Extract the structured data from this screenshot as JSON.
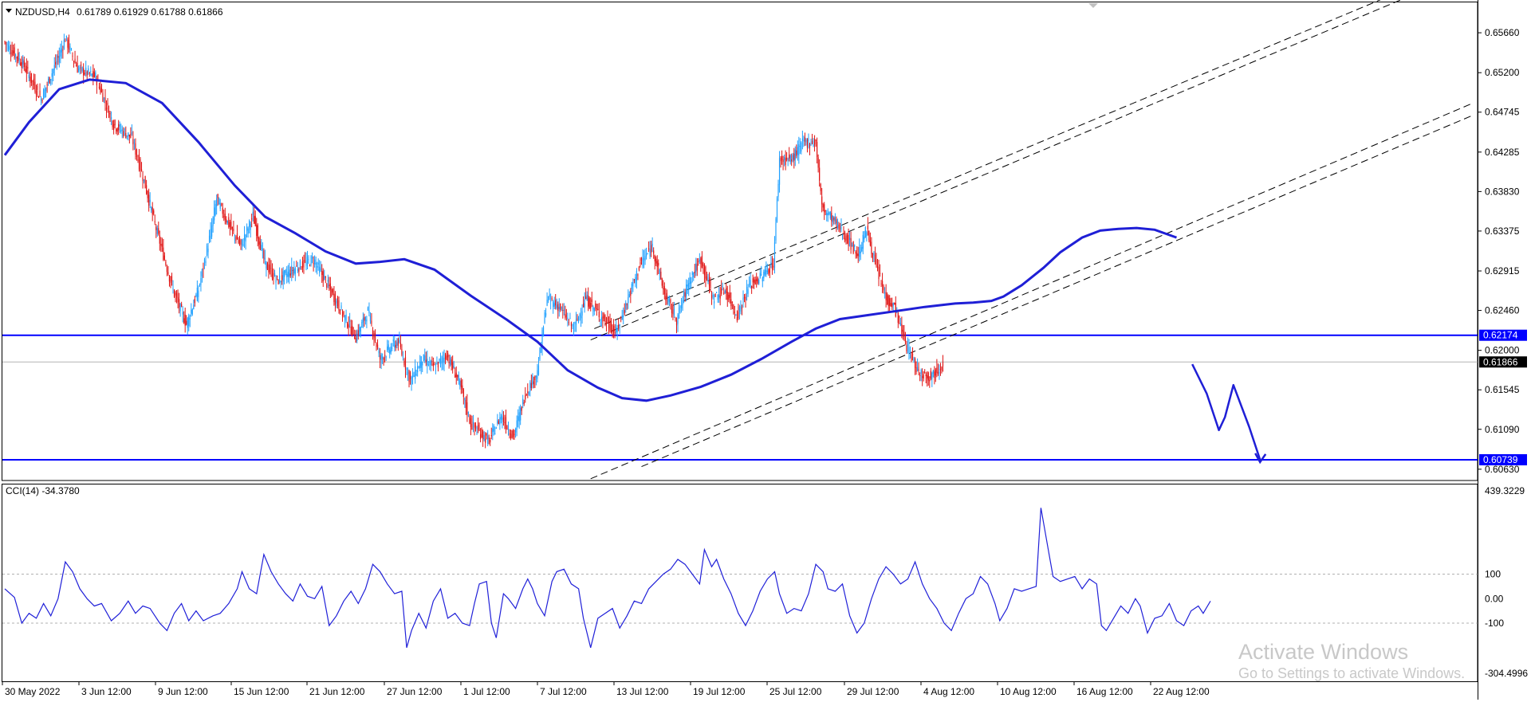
{
  "header": {
    "symbol_label": "NZDUSD,H4",
    "ohlc_text": "0.61789 0.61929 0.61788 0.61866"
  },
  "colors": {
    "bull": "#1ea0ff",
    "bear": "#e01414",
    "ma": "#1f1fd6",
    "level": "#0000ff",
    "grid": "#c8c8c8",
    "cci": "#2020d8"
  },
  "chart_data": [
    {
      "type": "candlestick",
      "title": "NZDUSD,H4",
      "timeframe": "H4",
      "last_ohlc": {
        "open": 0.61789,
        "high": 0.61929,
        "low": 0.61788,
        "close": 0.61866
      },
      "y_axis": {
        "ticks": [
          "0.65660",
          "0.65200",
          "0.64745",
          "0.64285",
          "0.63830",
          "0.63375",
          "0.62915",
          "0.62460",
          "0.62000",
          "0.61545",
          "0.61090",
          "0.60630"
        ],
        "ylim": [
          0.605,
          0.6601
        ]
      },
      "x_axis": {
        "ticks": [
          "30 May 2022",
          "3 Jun 12:00",
          "9 Jun 12:00",
          "15 Jun 12:00",
          "21 Jun 12:00",
          "27 Jun 12:00",
          "1 Jul 12:00",
          "7 Jul 12:00",
          "13 Jul 12:00",
          "19 Jul 12:00",
          "25 Jul 12:00",
          "29 Jul 12:00",
          "4 Aug 12:00",
          "10 Aug 12:00",
          "16 Aug 12:00",
          "22 Aug 12:00"
        ]
      },
      "horizontal_levels": [
        {
          "label": "0.62174",
          "value": 0.62174
        },
        {
          "label": "0.60739",
          "value": 0.60739
        }
      ],
      "current_price": {
        "label": "0.61866",
        "value": 0.61866
      },
      "moving_average_path": [
        [
          0,
          0.6425
        ],
        [
          20,
          0.6463
        ],
        [
          45,
          0.6501
        ],
        [
          70,
          0.6512
        ],
        [
          100,
          0.6508
        ],
        [
          130,
          0.6485
        ],
        [
          160,
          0.644
        ],
        [
          190,
          0.639
        ],
        [
          215,
          0.6354
        ],
        [
          240,
          0.6335
        ],
        [
          265,
          0.6314
        ],
        [
          290,
          0.63
        ],
        [
          310,
          0.6302
        ],
        [
          330,
          0.6305
        ],
        [
          355,
          0.6293
        ],
        [
          385,
          0.6263
        ],
        [
          415,
          0.6235
        ],
        [
          440,
          0.621
        ],
        [
          465,
          0.6177
        ],
        [
          490,
          0.6157
        ],
        [
          510,
          0.6145
        ],
        [
          530,
          0.6142
        ],
        [
          550,
          0.6148
        ],
        [
          575,
          0.6158
        ],
        [
          600,
          0.6172
        ],
        [
          625,
          0.619
        ],
        [
          650,
          0.621
        ],
        [
          670,
          0.6225
        ],
        [
          690,
          0.6236
        ],
        [
          710,
          0.624
        ],
        [
          735,
          0.6245
        ],
        [
          760,
          0.625
        ],
        [
          785,
          0.6254
        ],
        [
          800,
          0.6255
        ],
        [
          815,
          0.6257
        ],
        [
          825,
          0.6262
        ],
        [
          840,
          0.6275
        ],
        [
          858,
          0.6295
        ],
        [
          872,
          0.6313
        ],
        [
          890,
          0.633
        ],
        [
          905,
          0.6338
        ],
        [
          920,
          0.634
        ],
        [
          935,
          0.6341
        ],
        [
          950,
          0.6339
        ],
        [
          968,
          0.633
        ]
      ],
      "channel_lines": [
        {
          "from": [
            487,
            0.6225
          ],
          "to": [
            1145,
            0.6609
          ]
        },
        {
          "from": [
            484,
            0.6212
          ],
          "to": [
            1162,
            0.6609
          ]
        },
        {
          "from": [
            484,
            0.6052
          ],
          "to": [
            1213,
            0.6485
          ]
        },
        {
          "from": [
            526,
            0.6066
          ],
          "to": [
            1213,
            0.6471
          ]
        }
      ],
      "projection_path": [
        [
          981,
          0.6184
        ],
        [
          993,
          0.615
        ],
        [
          1003,
          0.6108
        ],
        [
          1008,
          0.6123
        ],
        [
          1015,
          0.616
        ],
        [
          1028,
          0.6112
        ],
        [
          1037,
          0.6074
        ]
      ],
      "bars_visible": 970
    },
    {
      "type": "line",
      "title": "CCI(14) -34.3780",
      "indicator": "CCI",
      "period": 14,
      "current_value": -34.378,
      "y_axis": {
        "ticks": [
          "439.3229",
          "100",
          "0.00",
          "-100",
          "-304.4996"
        ],
        "ylim": [
          -304.4996,
          439.3229
        ]
      },
      "reference_levels": [
        100,
        -100
      ],
      "values_path": [
        [
          0,
          40
        ],
        [
          8,
          5
        ],
        [
          14,
          -100
        ],
        [
          20,
          -60
        ],
        [
          26,
          -80
        ],
        [
          32,
          -20
        ],
        [
          38,
          -70
        ],
        [
          44,
          0
        ],
        [
          50,
          150
        ],
        [
          56,
          110
        ],
        [
          62,
          40
        ],
        [
          68,
          0
        ],
        [
          74,
          -30
        ],
        [
          80,
          -20
        ],
        [
          88,
          -90
        ],
        [
          95,
          -60
        ],
        [
          102,
          -10
        ],
        [
          108,
          -60
        ],
        [
          114,
          -30
        ],
        [
          120,
          -40
        ],
        [
          128,
          -100
        ],
        [
          134,
          -130
        ],
        [
          140,
          -60
        ],
        [
          146,
          -20
        ],
        [
          152,
          -90
        ],
        [
          158,
          -50
        ],
        [
          164,
          -90
        ],
        [
          172,
          -70
        ],
        [
          178,
          -60
        ],
        [
          185,
          -20
        ],
        [
          192,
          40
        ],
        [
          196,
          110
        ],
        [
          202,
          40
        ],
        [
          208,
          20
        ],
        [
          214,
          180
        ],
        [
          220,
          110
        ],
        [
          226,
          60
        ],
        [
          232,
          20
        ],
        [
          238,
          -10
        ],
        [
          244,
          60
        ],
        [
          250,
          10
        ],
        [
          256,
          0
        ],
        [
          262,
          50
        ],
        [
          268,
          -110
        ],
        [
          274,
          -70
        ],
        [
          280,
          -10
        ],
        [
          286,
          30
        ],
        [
          292,
          -20
        ],
        [
          298,
          40
        ],
        [
          304,
          140
        ],
        [
          310,
          110
        ],
        [
          316,
          60
        ],
        [
          322,
          20
        ],
        [
          328,
          30
        ],
        [
          332,
          -200
        ],
        [
          336,
          -130
        ],
        [
          342,
          -60
        ],
        [
          348,
          -120
        ],
        [
          354,
          -10
        ],
        [
          360,
          40
        ],
        [
          366,
          -80
        ],
        [
          372,
          -60
        ],
        [
          378,
          -100
        ],
        [
          384,
          -110
        ],
        [
          388,
          -20
        ],
        [
          392,
          60
        ],
        [
          398,
          70
        ],
        [
          402,
          -100
        ],
        [
          406,
          -160
        ],
        [
          412,
          20
        ],
        [
          416,
          0
        ],
        [
          422,
          -40
        ],
        [
          428,
          40
        ],
        [
          432,
          80
        ],
        [
          436,
          40
        ],
        [
          440,
          -20
        ],
        [
          446,
          -70
        ],
        [
          452,
          70
        ],
        [
          456,
          110
        ],
        [
          462,
          120
        ],
        [
          468,
          60
        ],
        [
          474,
          40
        ],
        [
          478,
          -80
        ],
        [
          484,
          -200
        ],
        [
          490,
          -80
        ],
        [
          496,
          -60
        ],
        [
          502,
          -40
        ],
        [
          508,
          -120
        ],
        [
          514,
          -70
        ],
        [
          520,
          -10
        ],
        [
          526,
          -20
        ],
        [
          532,
          40
        ],
        [
          538,
          70
        ],
        [
          544,
          100
        ],
        [
          550,
          120
        ],
        [
          556,
          160
        ],
        [
          562,
          140
        ],
        [
          568,
          100
        ],
        [
          574,
          60
        ],
        [
          578,
          200
        ],
        [
          584,
          130
        ],
        [
          588,
          160
        ],
        [
          594,
          80
        ],
        [
          600,
          20
        ],
        [
          606,
          -60
        ],
        [
          612,
          -110
        ],
        [
          618,
          -50
        ],
        [
          624,
          30
        ],
        [
          630,
          80
        ],
        [
          636,
          110
        ],
        [
          640,
          20
        ],
        [
          646,
          -60
        ],
        [
          652,
          -40
        ],
        [
          658,
          -50
        ],
        [
          664,
          20
        ],
        [
          670,
          140
        ],
        [
          676,
          110
        ],
        [
          680,
          40
        ],
        [
          686,
          30
        ],
        [
          692,
          60
        ],
        [
          698,
          -70
        ],
        [
          704,
          -140
        ],
        [
          710,
          -100
        ],
        [
          716,
          0
        ],
        [
          722,
          80
        ],
        [
          728,
          130
        ],
        [
          734,
          100
        ],
        [
          740,
          60
        ],
        [
          746,
          80
        ],
        [
          752,
          150
        ],
        [
          758,
          60
        ],
        [
          764,
          0
        ],
        [
          770,
          -40
        ],
        [
          776,
          -100
        ],
        [
          782,
          -130
        ],
        [
          788,
          -60
        ],
        [
          794,
          0
        ],
        [
          800,
          20
        ],
        [
          806,
          90
        ],
        [
          812,
          60
        ],
        [
          818,
          -20
        ],
        [
          822,
          -90
        ],
        [
          828,
          -40
        ],
        [
          834,
          40
        ],
        [
          840,
          30
        ],
        [
          846,
          40
        ],
        [
          852,
          50
        ],
        [
          856,
          370
        ],
        [
          862,
          200
        ],
        [
          866,
          90
        ],
        [
          872,
          70
        ],
        [
          878,
          80
        ],
        [
          884,
          90
        ],
        [
          890,
          40
        ],
        [
          896,
          80
        ],
        [
          902,
          60
        ],
        [
          906,
          -110
        ],
        [
          910,
          -130
        ],
        [
          916,
          -80
        ],
        [
          922,
          -30
        ],
        [
          928,
          -60
        ],
        [
          934,
          0
        ],
        [
          938,
          -30
        ],
        [
          944,
          -140
        ],
        [
          950,
          -80
        ],
        [
          956,
          -70
        ],
        [
          962,
          -20
        ],
        [
          968,
          -90
        ],
        [
          974,
          -110
        ],
        [
          980,
          -50
        ],
        [
          986,
          -30
        ],
        [
          990,
          -60
        ],
        [
          996,
          -10
        ]
      ]
    }
  ],
  "watermark": {
    "line1": "Activate Windows",
    "line2": "Go to Settings to activate Windows."
  }
}
